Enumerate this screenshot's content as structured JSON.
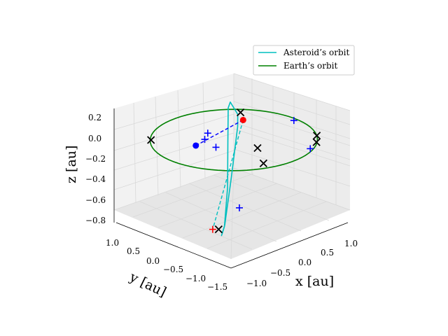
{
  "chart_data": {
    "type": "line",
    "projection": "3d",
    "xlabel": "x [au]",
    "ylabel": "y [au]",
    "zlabel": "z [au]",
    "x_ticks": [
      "−1.0",
      "−0.5",
      "0.0",
      "0.5",
      "1.0"
    ],
    "y_ticks": [
      "1.0",
      "0.5",
      "0.0",
      "−0.5",
      "−1.0",
      "−1.5"
    ],
    "z_ticks": [
      "0.2",
      "0.0",
      "−0.2",
      "−0.4",
      "−0.6",
      "−0.8"
    ],
    "legend": {
      "position": "top-right",
      "entries": [
        "Asteroid’s orbit",
        "Earth’s orbit"
      ]
    },
    "grid": true,
    "series": [
      {
        "name": "Asteroid’s orbit",
        "color": "#00bfbf",
        "style": "solid",
        "points": [
          [
            -0.45,
            -0.5,
            0.05
          ],
          [
            -0.32,
            -0.25,
            0.25
          ],
          [
            -0.2,
            -0.1,
            0.25
          ],
          [
            -0.05,
            0.05,
            0.0
          ],
          [
            0.1,
            0.2,
            -0.4
          ],
          [
            0.15,
            0.3,
            -0.75
          ],
          [
            0.1,
            0.3,
            -0.85
          ],
          [
            0.0,
            0.15,
            -0.8
          ],
          [
            -0.2,
            -0.15,
            -0.45
          ],
          [
            -0.4,
            -0.45,
            -0.05
          ],
          [
            -0.45,
            -0.5,
            0.05
          ]
        ]
      },
      {
        "name": "Earth’s orbit",
        "color": "#008000",
        "style": "solid",
        "points": [
          [
            1.0,
            0.0,
            0.0
          ],
          [
            0.71,
            0.71,
            0.0
          ],
          [
            0.0,
            1.0,
            0.0
          ],
          [
            -0.71,
            0.71,
            0.0
          ],
          [
            -1.0,
            0.0,
            0.0
          ],
          [
            -0.71,
            -0.71,
            0.0
          ],
          [
            0.0,
            -1.0,
            0.0
          ],
          [
            0.71,
            -0.71,
            0.0
          ],
          [
            1.0,
            0.0,
            0.0
          ]
        ]
      }
    ],
    "markers": [
      {
        "type": "x",
        "color": "#000000",
        "points": [
          [
            -0.7,
            0.7,
            0.0
          ],
          [
            -0.35,
            -0.45,
            0.1
          ],
          [
            0.6,
            -0.8,
            0.0
          ],
          [
            0.75,
            -0.65,
            0.0
          ],
          [
            0.15,
            -0.25,
            -0.1
          ],
          [
            0.2,
            -0.3,
            -0.25
          ],
          [
            0.05,
            0.3,
            -0.8
          ]
        ]
      },
      {
        "type": "+",
        "color": "#0000ff",
        "points": [
          [
            0.05,
            -0.95,
            0.0
          ],
          [
            0.85,
            -0.45,
            0.0
          ],
          [
            -0.1,
            0.2,
            -0.05
          ],
          [
            -0.5,
            -0.05,
            -0.05
          ],
          [
            0.2,
            0.1,
            -0.6
          ],
          [
            -0.5,
            0.0,
            -0.1
          ]
        ]
      },
      {
        "type": "+",
        "color": "#ff0000",
        "points": [
          [
            0.0,
            0.35,
            -0.8
          ]
        ]
      },
      {
        "type": "o",
        "color": "#ff0000",
        "points": [
          [
            -0.15,
            -0.3,
            0.1
          ]
        ]
      },
      {
        "type": "o",
        "color": "#0000ff",
        "points": [
          [
            -0.55,
            0.1,
            -0.15
          ]
        ]
      }
    ],
    "connectors": [
      {
        "color": "#0000ff",
        "style": "dashed",
        "from": [
          -0.15,
          -0.3,
          0.1
        ],
        "to": [
          -0.55,
          0.1,
          -0.15
        ]
      },
      {
        "color": "#00bfbf",
        "style": "dashed",
        "from": [
          -0.15,
          -0.3,
          0.1
        ],
        "to": [
          0.0,
          0.35,
          -0.8
        ]
      }
    ]
  }
}
